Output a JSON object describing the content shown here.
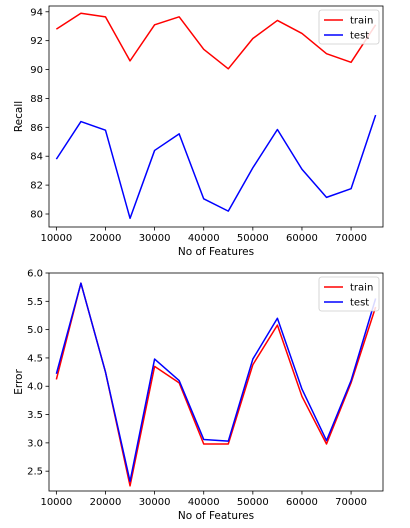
{
  "chart_data": [
    {
      "type": "line",
      "title": "",
      "xlabel": "No of Features",
      "ylabel": "Recall",
      "x": [
        10000,
        15000,
        20000,
        25000,
        30000,
        35000,
        40000,
        45000,
        50000,
        55000,
        60000,
        65000,
        70000,
        75000
      ],
      "xlim": [
        8500,
        76500
      ],
      "ylim": [
        79.1,
        94.4
      ],
      "xticks": [
        10000,
        20000,
        30000,
        40000,
        50000,
        60000,
        70000
      ],
      "xtick_labels": [
        "10000",
        "20000",
        "30000",
        "40000",
        "50000",
        "60000",
        "70000"
      ],
      "yticks": [
        80,
        82,
        84,
        86,
        88,
        90,
        92,
        94
      ],
      "ytick_labels": [
        "80",
        "82",
        "84",
        "86",
        "88",
        "90",
        "92",
        "94"
      ],
      "grid": false,
      "legend": "top-right",
      "series": [
        {
          "name": "train",
          "color": "#ff0000",
          "values": [
            92.8,
            93.9,
            93.65,
            90.6,
            93.1,
            93.65,
            91.4,
            90.05,
            92.15,
            93.4,
            92.5,
            91.1,
            90.5,
            93.1
          ]
        },
        {
          "name": "test",
          "color": "#0000ff",
          "values": [
            83.8,
            86.4,
            85.8,
            79.7,
            84.4,
            85.55,
            81.05,
            80.2,
            83.2,
            85.85,
            83.1,
            81.15,
            81.75,
            86.85
          ]
        }
      ]
    },
    {
      "type": "line",
      "title": "",
      "xlabel": "No of Features",
      "ylabel": "Error",
      "x": [
        10000,
        15000,
        20000,
        25000,
        30000,
        35000,
        40000,
        45000,
        50000,
        55000,
        60000,
        65000,
        70000,
        75000
      ],
      "xlim": [
        8500,
        76500
      ],
      "ylim": [
        2.15,
        6.0
      ],
      "xticks": [
        10000,
        20000,
        30000,
        40000,
        50000,
        60000,
        70000
      ],
      "xtick_labels": [
        "10000",
        "20000",
        "30000",
        "40000",
        "50000",
        "60000",
        "70000"
      ],
      "yticks": [
        2.5,
        3.0,
        3.5,
        4.0,
        4.5,
        5.0,
        5.5,
        6.0
      ],
      "ytick_labels": [
        "2.5",
        "3.0",
        "3.5",
        "4.0",
        "4.5",
        "5.0",
        "5.5",
        "6.0"
      ],
      "grid": false,
      "legend": "top-right",
      "series": [
        {
          "name": "train",
          "color": "#ff0000",
          "values": [
            4.12,
            5.82,
            4.25,
            2.24,
            4.35,
            4.06,
            2.98,
            2.98,
            4.38,
            5.08,
            3.82,
            2.98,
            4.06,
            5.4
          ]
        },
        {
          "name": "test",
          "color": "#0000ff",
          "values": [
            4.22,
            5.82,
            4.25,
            2.32,
            4.48,
            4.1,
            3.06,
            3.03,
            4.48,
            5.2,
            3.95,
            3.04,
            4.1,
            5.55
          ]
        }
      ]
    }
  ]
}
